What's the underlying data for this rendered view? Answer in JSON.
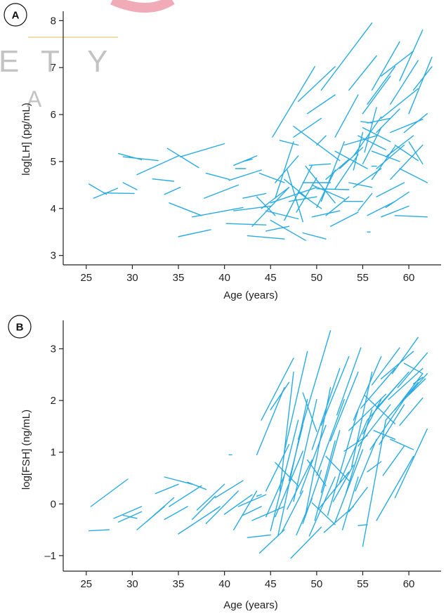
{
  "watermark": {
    "letters": [
      "E",
      "T",
      "Y",
      "A"
    ],
    "accent_color": "#f0a3b0",
    "line_color": "#f3d9a0",
    "text_color": "#bdbdbd"
  },
  "colors": {
    "series": "#29abe2",
    "axis": "#222222"
  },
  "chart_data": [
    {
      "panel": "A",
      "type": "line",
      "xlabel": "Age (years)",
      "ylabel": "log[LH] (pg/mL)",
      "xlim": [
        22.5,
        63.5
      ],
      "ylim": [
        2.8,
        8.2
      ],
      "xticks": [
        25,
        30,
        35,
        40,
        45,
        50,
        55,
        60
      ],
      "xtick_labels": [
        "25",
        "30",
        "35",
        "40",
        "45",
        "50",
        "55",
        "60"
      ],
      "yticks": [
        3,
        4,
        5,
        6,
        7,
        8
      ],
      "ytick_labels": [
        "3",
        "4",
        "5",
        "6",
        "7",
        "8"
      ],
      "grid": false,
      "segments": [
        [
          25.3,
          4.52,
          27.2,
          4.3
        ],
        [
          25.8,
          4.22,
          28.4,
          4.43
        ],
        [
          27.0,
          4.33,
          30.2,
          4.32
        ],
        [
          28.5,
          5.17,
          31.0,
          5.04
        ],
        [
          29.0,
          5.1,
          32.8,
          5.02
        ],
        [
          29.0,
          4.55,
          30.5,
          4.4
        ],
        [
          30.5,
          4.72,
          35.0,
          5.12
        ],
        [
          33.8,
          5.28,
          37.2,
          4.87
        ],
        [
          35.2,
          5.1,
          40.0,
          5.38
        ],
        [
          32.2,
          4.63,
          34.5,
          4.58
        ],
        [
          33.5,
          4.3,
          35.2,
          4.45
        ],
        [
          34.0,
          4.12,
          37.5,
          3.85
        ],
        [
          35.0,
          3.4,
          38.5,
          3.55
        ],
        [
          36.5,
          3.82,
          42.0,
          4.02
        ],
        [
          37.8,
          4.22,
          41.5,
          4.5
        ],
        [
          38.0,
          4.75,
          40.5,
          4.62
        ],
        [
          40.5,
          4.6,
          44.0,
          4.82
        ],
        [
          40.2,
          3.68,
          44.5,
          3.65
        ],
        [
          41.0,
          3.95,
          45.0,
          4.05
        ],
        [
          41.0,
          4.92,
          43.5,
          5.12
        ],
        [
          42.0,
          4.22,
          44.5,
          4.32
        ],
        [
          42.0,
          5.0,
          43.0,
          5.05
        ],
        [
          41.2,
          4.85,
          42.3,
          4.85
        ],
        [
          42.5,
          3.42,
          46.5,
          3.35
        ],
        [
          43.0,
          3.62,
          47.0,
          4.45
        ],
        [
          43.5,
          4.25,
          45.5,
          3.85
        ],
        [
          43.8,
          4.75,
          46.5,
          4.55
        ],
        [
          44.5,
          3.52,
          47.0,
          3.62
        ],
        [
          44.0,
          4.0,
          47.0,
          4.45
        ],
        [
          44.5,
          3.95,
          48.0,
          3.78
        ],
        [
          45.0,
          3.75,
          48.8,
          3.32
        ],
        [
          45.0,
          4.12,
          50.0,
          4.45
        ],
        [
          45.5,
          4.55,
          48.0,
          5.12
        ],
        [
          45.5,
          4.22,
          47.5,
          5.42
        ],
        [
          45.2,
          5.52,
          49.8,
          7.02
        ],
        [
          46.0,
          5.45,
          48.0,
          5.35
        ],
        [
          46.5,
          4.62,
          48.8,
          4.25
        ],
        [
          46.5,
          3.75,
          49.5,
          4.92
        ],
        [
          46.8,
          4.82,
          48.5,
          3.72
        ],
        [
          47.0,
          4.15,
          50.0,
          4.25
        ],
        [
          47.5,
          5.52,
          50.5,
          5.92
        ],
        [
          47.5,
          5.75,
          52.5,
          5.02
        ],
        [
          47.8,
          3.92,
          50.0,
          4.65
        ],
        [
          48.0,
          4.35,
          50.5,
          4.0
        ],
        [
          48.0,
          6.28,
          52.0,
          7.02
        ],
        [
          48.5,
          3.48,
          51.0,
          3.35
        ],
        [
          48.5,
          4.55,
          51.5,
          4.55
        ],
        [
          48.8,
          4.9,
          52.0,
          4.12
        ],
        [
          49.0,
          6.02,
          52.0,
          6.42
        ],
        [
          49.2,
          4.92,
          51.5,
          4.95
        ],
        [
          49.5,
          4.5,
          53.0,
          4.2
        ],
        [
          49.5,
          3.82,
          52.5,
          3.95
        ],
        [
          50.0,
          5.35,
          51.0,
          5.55
        ],
        [
          50.0,
          4.42,
          53.5,
          4.4
        ],
        [
          50.0,
          4.02,
          52.0,
          4.82
        ],
        [
          50.5,
          4.15,
          53.0,
          5.42
        ],
        [
          50.5,
          6.52,
          56.0,
          7.95
        ],
        [
          51.0,
          3.85,
          53.5,
          4.25
        ],
        [
          51.0,
          4.62,
          53.5,
          5.05
        ],
        [
          51.5,
          3.62,
          54.5,
          3.92
        ],
        [
          52.0,
          5.22,
          55.5,
          4.85
        ],
        [
          52.0,
          4.42,
          54.5,
          5.15
        ],
        [
          52.0,
          5.52,
          54.5,
          6.42
        ],
        [
          52.5,
          4.85,
          55.0,
          5.3
        ],
        [
          53.0,
          4.15,
          55.0,
          4.15
        ],
        [
          53.0,
          5.35,
          56.5,
          5.55
        ],
        [
          53.5,
          4.55,
          56.0,
          4.45
        ],
        [
          53.5,
          6.52,
          56.5,
          7.25
        ],
        [
          54.0,
          4.82,
          55.0,
          5.62
        ],
        [
          54.0,
          5.12,
          57.0,
          5.95
        ],
        [
          54.0,
          4.45,
          57.0,
          4.85
        ],
        [
          54.5,
          3.95,
          56.0,
          4.32
        ],
        [
          54.5,
          5.55,
          57.5,
          5.25
        ],
        [
          55.0,
          5.72,
          58.0,
          5.42
        ],
        [
          55.0,
          4.95,
          57.0,
          5.72
        ],
        [
          55.0,
          6.02,
          58.0,
          6.82
        ],
        [
          55.2,
          5.2,
          56.5,
          6.15
        ],
        [
          55.5,
          3.85,
          58.5,
          4.15
        ],
        [
          55.5,
          5.82,
          58.0,
          5.92
        ],
        [
          55.5,
          6.22,
          58.5,
          7.02
        ],
        [
          56.0,
          4.62,
          58.5,
          5.32
        ],
        [
          56.0,
          5.22,
          59.0,
          5.0
        ],
        [
          56.0,
          6.52,
          59.0,
          7.55
        ],
        [
          56.5,
          4.85,
          59.5,
          5.35
        ],
        [
          56.5,
          5.62,
          59.0,
          6.12
        ],
        [
          56.5,
          4.25,
          59.5,
          4.55
        ],
        [
          57.0,
          5.92,
          61.0,
          6.55
        ],
        [
          57.0,
          3.82,
          60.0,
          4.05
        ],
        [
          57.0,
          6.82,
          60.5,
          7.35
        ],
        [
          57.5,
          5.1,
          60.5,
          5.55
        ],
        [
          57.5,
          4.02,
          60.0,
          4.35
        ],
        [
          58.0,
          5.62,
          61.5,
          5.9
        ],
        [
          58.0,
          6.22,
          61.0,
          7.15
        ],
        [
          58.0,
          4.62,
          61.5,
          5.35
        ],
        [
          58.5,
          5.35,
          61.0,
          5.02
        ],
        [
          58.5,
          3.85,
          62.0,
          3.82
        ],
        [
          59.0,
          6.72,
          61.5,
          7.8
        ],
        [
          59.0,
          4.85,
          62.0,
          4.55
        ],
        [
          59.5,
          5.62,
          62.0,
          6.02
        ],
        [
          60.0,
          6.02,
          62.5,
          7.22
        ],
        [
          60.0,
          5.42,
          61.5,
          4.95
        ],
        [
          60.5,
          6.52,
          62.5,
          7.02
        ],
        [
          56.0,
          4.9,
          56.5,
          4.9
        ],
        [
          55.5,
          3.5,
          55.8,
          3.5
        ],
        [
          54.8,
          5.85,
          56.0,
          5.82
        ]
      ]
    },
    {
      "panel": "B",
      "type": "line",
      "xlabel": "Age (years)",
      "ylabel": "log[FSH] (ng/mL)",
      "xlim": [
        22.5,
        63.5
      ],
      "ylim": [
        -1.3,
        3.55
      ],
      "xticks": [
        25,
        30,
        35,
        40,
        45,
        50,
        55,
        60
      ],
      "xtick_labels": [
        "25",
        "30",
        "35",
        "40",
        "45",
        "50",
        "55",
        "60"
      ],
      "yticks": [
        -1,
        0,
        1,
        2,
        3
      ],
      "ytick_labels": [
        "–1",
        "0",
        "1",
        "2",
        "3"
      ],
      "grid": false,
      "segments": [
        [
          25.3,
          -0.52,
          27.5,
          -0.5
        ],
        [
          25.5,
          -0.05,
          29.5,
          0.48
        ],
        [
          28.0,
          -0.28,
          31.0,
          -0.05
        ],
        [
          28.5,
          -0.35,
          31.0,
          -0.15
        ],
        [
          29.0,
          -0.22,
          30.5,
          -0.28
        ],
        [
          30.5,
          -0.5,
          33.5,
          -0.05
        ],
        [
          31.5,
          -0.35,
          34.5,
          0.12
        ],
        [
          32.5,
          0.2,
          35.0,
          0.38
        ],
        [
          33.5,
          -0.3,
          36.0,
          -0.05
        ],
        [
          33.5,
          0.52,
          36.5,
          0.38
        ],
        [
          34.0,
          -0.05,
          37.5,
          0.35
        ],
        [
          35.0,
          -0.58,
          39.5,
          -0.05
        ],
        [
          36.0,
          0.42,
          38.0,
          0.28
        ],
        [
          36.5,
          -0.3,
          39.0,
          0.15
        ],
        [
          37.0,
          -0.12,
          40.0,
          0.38
        ],
        [
          38.0,
          -0.38,
          41.5,
          0.25
        ],
        [
          39.0,
          0.12,
          42.0,
          0.45
        ],
        [
          40.0,
          -0.2,
          43.0,
          0.18
        ],
        [
          40.5,
          0.95,
          40.8,
          0.95
        ],
        [
          41.0,
          -0.5,
          43.5,
          0.25
        ],
        [
          41.5,
          -0.05,
          44.5,
          0.18
        ],
        [
          42.0,
          -0.22,
          44.0,
          -0.05
        ],
        [
          42.5,
          -0.65,
          45.0,
          -0.6
        ],
        [
          43.0,
          -0.32,
          46.5,
          -0.05
        ],
        [
          43.5,
          0.15,
          44.0,
          0.18
        ],
        [
          43.5,
          0.95,
          46.5,
          2.25
        ],
        [
          43.8,
          -0.95,
          46.5,
          -0.5
        ],
        [
          44.0,
          1.62,
          47.5,
          2.82
        ],
        [
          44.5,
          0.25,
          47.0,
          1.15
        ],
        [
          44.5,
          -0.25,
          46.5,
          0.55
        ],
        [
          45.0,
          -0.52,
          48.0,
          1.62
        ],
        [
          45.0,
          1.82,
          47.0,
          2.35
        ],
        [
          45.5,
          -0.25,
          48.5,
          1.02
        ],
        [
          45.5,
          0.8,
          48.0,
          0.35
        ],
        [
          45.8,
          -0.62,
          49.0,
          2.02
        ],
        [
          46.0,
          0.25,
          47.5,
          2.55
        ],
        [
          46.2,
          -0.55,
          48.5,
          0.25
        ],
        [
          46.5,
          1.02,
          49.0,
          2.95
        ],
        [
          46.8,
          -0.1,
          49.5,
          0.85
        ],
        [
          47.0,
          0.45,
          48.5,
          1.52
        ],
        [
          47.2,
          -1.05,
          50.5,
          -0.45
        ],
        [
          47.5,
          0.05,
          50.0,
          2.02
        ],
        [
          47.8,
          -0.6,
          49.5,
          0.1
        ],
        [
          48.0,
          1.25,
          51.5,
          3.35
        ],
        [
          48.2,
          0.2,
          51.0,
          1.52
        ],
        [
          48.5,
          -0.38,
          50.5,
          0.65
        ],
        [
          48.5,
          2.15,
          50.0,
          1.4
        ],
        [
          48.8,
          -0.2,
          51.5,
          2.25
        ],
        [
          49.0,
          0.85,
          51.0,
          0.35
        ],
        [
          49.2,
          -0.62,
          52.0,
          0.52
        ],
        [
          49.5,
          1.05,
          52.5,
          2.62
        ],
        [
          49.5,
          0.02,
          52.0,
          -0.4
        ],
        [
          49.8,
          -0.32,
          52.5,
          1.42
        ],
        [
          50.0,
          0.55,
          53.0,
          2.02
        ],
        [
          50.2,
          -0.1,
          53.5,
          0.62
        ],
        [
          50.5,
          1.52,
          53.5,
          2.85
        ],
        [
          50.5,
          0.22,
          52.0,
          1.22
        ],
        [
          50.8,
          -0.55,
          54.0,
          -0.05
        ],
        [
          51.0,
          0.92,
          53.5,
          0.45
        ],
        [
          51.2,
          -0.22,
          54.5,
          1.82
        ],
        [
          51.5,
          1.22,
          54.5,
          2.55
        ],
        [
          51.8,
          0.05,
          54.0,
          0.75
        ],
        [
          52.0,
          -0.35,
          55.0,
          1.05
        ],
        [
          52.2,
          1.72,
          54.8,
          3.02
        ],
        [
          52.5,
          0.42,
          55.5,
          1.62
        ],
        [
          52.8,
          -0.5,
          54.5,
          0.52
        ],
        [
          53.0,
          1.02,
          55.5,
          1.32
        ],
        [
          53.2,
          0.22,
          56.0,
          1.82
        ],
        [
          53.5,
          1.42,
          57.5,
          2.12
        ],
        [
          53.5,
          -0.15,
          55.5,
          0.32
        ],
        [
          53.8,
          0.72,
          56.0,
          2.55
        ],
        [
          54.0,
          1.62,
          57.0,
          2.85
        ],
        [
          54.2,
          0.25,
          56.5,
          1.25
        ],
        [
          54.5,
          1.12,
          58.0,
          1.92
        ],
        [
          54.5,
          -0.42,
          55.5,
          -0.4
        ],
        [
          54.8,
          1.85,
          58.5,
          2.62
        ],
        [
          55.0,
          -0.82,
          57.5,
          1.62
        ],
        [
          55.0,
          1.35,
          57.0,
          2.02
        ],
        [
          55.2,
          2.1,
          58.5,
          1.55
        ],
        [
          55.5,
          1.62,
          59.0,
          2.35
        ],
        [
          55.5,
          0.62,
          57.0,
          0.82
        ],
        [
          55.8,
          1.05,
          59.5,
          2.02
        ],
        [
          56.0,
          2.3,
          59.0,
          3.02
        ],
        [
          56.2,
          1.42,
          58.5,
          1.25
        ],
        [
          56.5,
          -0.32,
          60.5,
          0.92
        ],
        [
          56.5,
          1.85,
          60.0,
          2.55
        ],
        [
          56.8,
          1.15,
          59.5,
          1.92
        ],
        [
          57.0,
          2.42,
          60.5,
          2.95
        ],
        [
          57.2,
          0.55,
          59.5,
          1.12
        ],
        [
          57.5,
          1.62,
          61.0,
          2.35
        ],
        [
          57.8,
          2.02,
          61.5,
          2.62
        ],
        [
          58.0,
          1.25,
          60.5,
          1.05
        ],
        [
          58.2,
          2.52,
          61.0,
          3.22
        ],
        [
          58.5,
          1.82,
          61.5,
          2.52
        ],
        [
          58.5,
          0.12,
          62.0,
          1.45
        ],
        [
          58.8,
          2.25,
          62.0,
          2.92
        ],
        [
          59.0,
          1.52,
          61.5,
          2.05
        ],
        [
          59.5,
          2.02,
          61.8,
          2.42
        ],
        [
          59.5,
          2.72,
          61.5,
          2.52
        ],
        [
          60.0,
          2.12,
          62.0,
          2.52
        ],
        [
          60.5,
          2.32,
          61.5,
          2.45
        ]
      ]
    }
  ]
}
